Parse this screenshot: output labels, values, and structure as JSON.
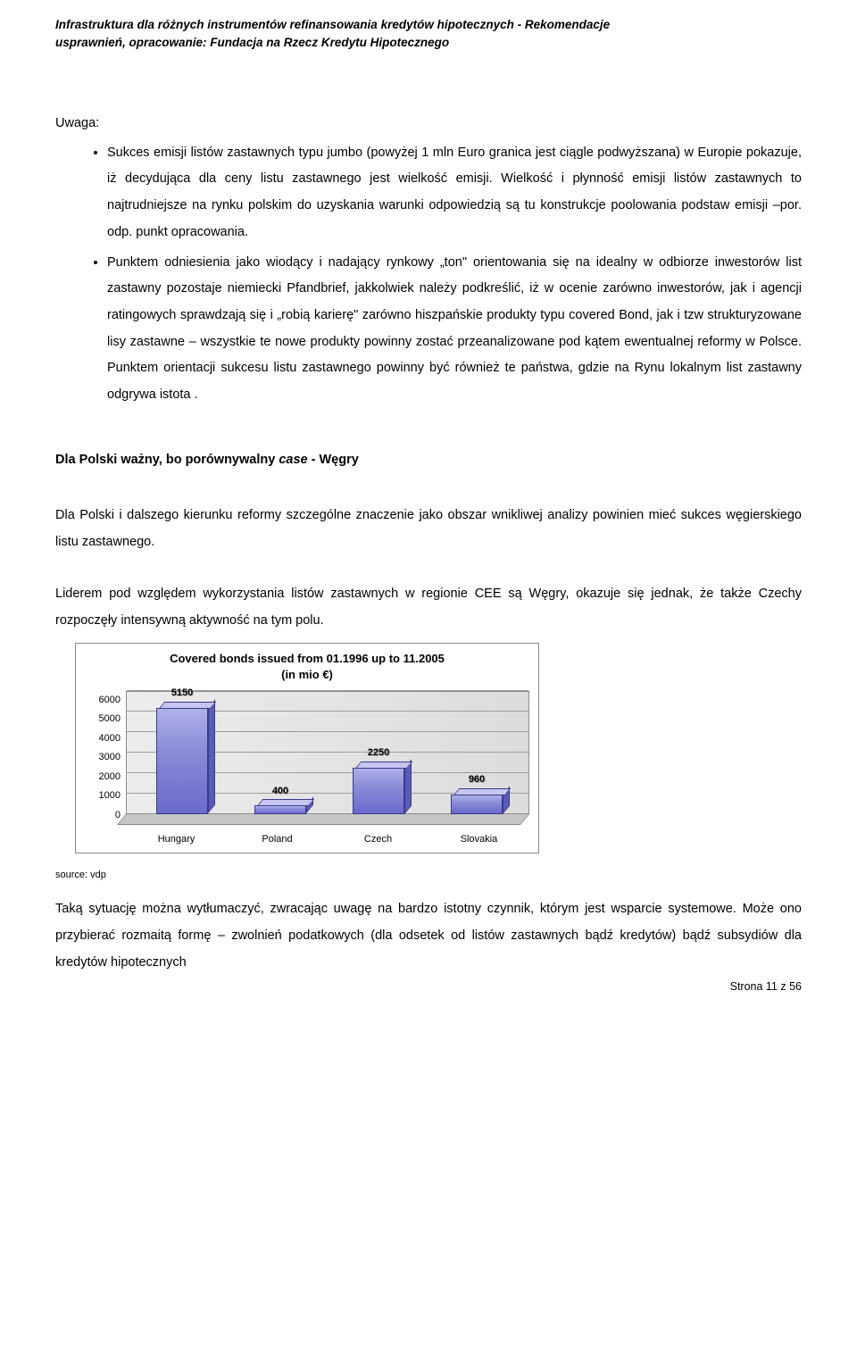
{
  "header_line1": "Infrastruktura dla różnych instrumentów refinansowania kredytów hipotecznych - Rekomendacje",
  "header_line2": "usprawnień, opracowanie: Fundacja na Rzecz Kredytu Hipotecznego",
  "uwaga_label": "Uwaga:",
  "bullets": {
    "b1": "Sukces emisji listów zastawnych typu jumbo (powyżej 1 mln Euro granica jest ciągle podwyższana) w Europie pokazuje, iż decydująca dla ceny listu zastawnego jest wielkość emisji. Wielkość i płynność emisji listów zastawnych to najtrudniejsze na rynku polskim do uzyskania warunki odpowiedzią są tu konstrukcje poolowania podstaw emisji –por. odp. punkt opracowania.",
    "b2": "Punktem odniesienia jako wiodący i nadający rynkowy „ton\" orientowania się na idealny w odbiorze inwestorów list zastawny pozostaje niemiecki Pfandbrief, jakkolwiek należy podkreślić, iż w ocenie zarówno inwestorów, jak i agencji ratingowych sprawdzają się i „robią karierę\" zarówno hiszpańskie produkty typu covered Bond, jak i tzw strukturyzowane lisy zastawne – wszystkie te nowe produkty powinny zostać przeanalizowane pod kątem ewentualnej reformy w Polsce. Punktem orientacji sukcesu listu zastawnego powinny być również te państwa, gdzie na Rynu lokalnym list zastawny odgrywa istota ."
  },
  "section_heading_plain": "Dla Polski ważny, bo porównywalny ",
  "section_heading_ital": "case",
  "section_heading_tail": " - Węgry",
  "para1": "Dla Polski i dalszego kierunku reformy szczególne znaczenie jako obszar wnikliwej analizy powinien mieć sukces węgierskiego listu zastawnego.",
  "para2": "Liderem pod względem wykorzystania listów zastawnych w regionie CEE są Węgry, okazuje się jednak, że także Czechy rozpoczęły intensywną aktywność na tym polu.",
  "chart": {
    "type": "bar",
    "title_l1": "Covered bonds issued from 01.1996  up to 11.2005",
    "title_l2": "(in mio €)",
    "categories": [
      "Hungary",
      "Poland",
      "Czech",
      "Slovakia"
    ],
    "values": [
      5150,
      400,
      2250,
      960
    ],
    "ylim_max": 6000,
    "ytick_step": 1000,
    "yticks": [
      "6000",
      "5000",
      "4000",
      "3000",
      "2000",
      "1000",
      "0"
    ],
    "bar_fill_top": "#b0b0ea",
    "bar_fill_bottom": "#6a6acc",
    "bar_border": "#3a3a8a",
    "background": "#e2e2e2",
    "grid_color": "#9d9d9d",
    "buckets": 4
  },
  "source_label": "source: vdp",
  "para3": "Taką sytuację można wytłumaczyć, zwracając uwagę na bardzo istotny czynnik, którym jest wsparcie systemowe. Może ono przybierać rozmaitą formę – zwolnień podatkowych (dla odsetek od listów zastawnych bądź kredytów) bądź subsydiów dla kredytów hipotecznych",
  "page_footer": "Strona 11 z 56"
}
